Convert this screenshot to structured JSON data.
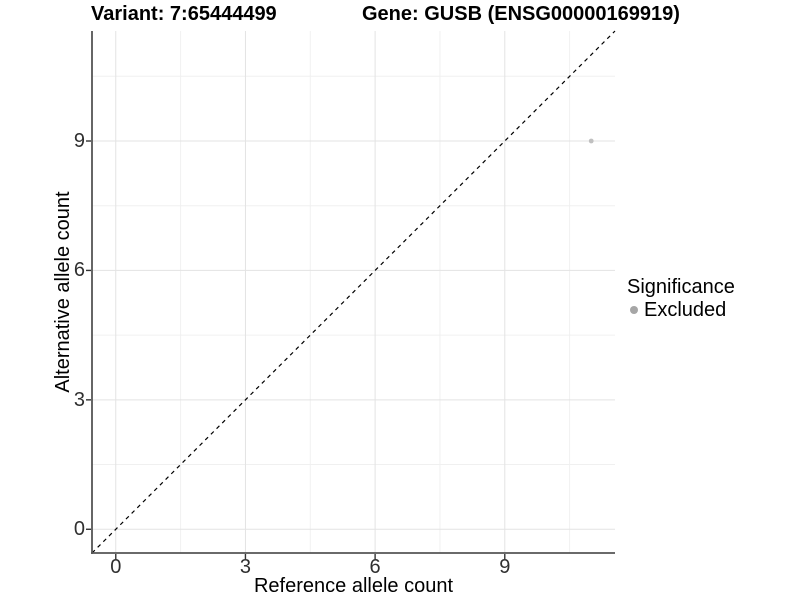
{
  "chart_data": {
    "type": "scatter",
    "title_left": "Variant: 7:65444499",
    "title_right": "Gene: GUSB (ENSG00000169919)",
    "xlabel": "Reference allele count",
    "ylabel": "Alternative allele count",
    "xlim": [
      -0.55,
      11.55
    ],
    "ylim": [
      -0.55,
      11.55
    ],
    "x_ticks": [
      0,
      3,
      6,
      9
    ],
    "y_ticks": [
      0,
      3,
      6,
      9
    ],
    "x_minor_ticks": [
      1.5,
      4.5,
      7.5,
      10.5
    ],
    "y_minor_ticks": [
      1.5,
      4.5,
      7.5,
      10.5
    ],
    "grid": true,
    "identity_line": {
      "type": "y=x",
      "style": "dashed",
      "color": "#000000"
    },
    "series": [
      {
        "name": "Excluded",
        "color": "#c0c0c0",
        "points": [
          {
            "x": 11,
            "y": 9
          }
        ]
      }
    ],
    "legend": {
      "title": "Significance",
      "position": "right",
      "items": [
        {
          "label": "Excluded",
          "color": "#a6a6a6"
        }
      ]
    },
    "colors": {
      "background": "#ffffff",
      "grid_major": "#e3e3e3",
      "grid_minor": "#f0f0f0",
      "axis_line": "#555555",
      "tick_mark": "#333333",
      "tick_text": "#303030"
    }
  }
}
